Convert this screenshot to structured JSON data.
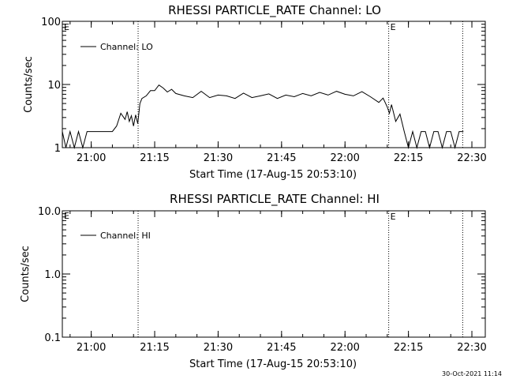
{
  "colors": {
    "background": "#ffffff",
    "foreground": "#000000"
  },
  "timestamp": "30-Oct-2021 11:14",
  "chart_data": [
    {
      "type": "line",
      "title": "RHESSI PARTICLE_RATE Channel: LO",
      "xlabel": "Start Time (17-Aug-15 20:53:10)",
      "ylabel": "Counts/sec",
      "yscale": "log",
      "ylim": [
        1,
        100
      ],
      "xlim": [
        "20:53:10",
        "22:33:10"
      ],
      "x_ticks": [
        "21:00",
        "21:15",
        "21:30",
        "21:45",
        "22:00",
        "22:15",
        "22:30"
      ],
      "y_ticks": [
        "1",
        "10",
        "100"
      ],
      "legend": {
        "position": "top-left",
        "entries": [
          "Channel: LO"
        ]
      },
      "markers": [
        {
          "time": "21:11:05",
          "label": ""
        },
        {
          "time": "22:10:20",
          "label": "E"
        },
        {
          "time": "22:27:50",
          "label": ""
        }
      ],
      "corner_label": "E",
      "series": [
        {
          "name": "Channel: LO",
          "x": [
            "20:53:10",
            "20:54:00",
            "20:55:00",
            "20:56:00",
            "20:57:00",
            "20:58:00",
            "20:59:00",
            "21:00:00",
            "21:01:00",
            "21:02:00",
            "21:03:00",
            "21:04:00",
            "21:05:00",
            "21:06:00",
            "21:07:00",
            "21:08:00",
            "21:08:30",
            "21:09:00",
            "21:09:30",
            "21:10:00",
            "21:10:30",
            "21:11:00",
            "21:11:30",
            "21:12:00",
            "21:13:00",
            "21:14:00",
            "21:15:00",
            "21:16:00",
            "21:17:00",
            "21:18:00",
            "21:19:00",
            "21:20:00",
            "21:22:00",
            "21:24:00",
            "21:26:00",
            "21:28:00",
            "21:30:00",
            "21:32:00",
            "21:34:00",
            "21:36:00",
            "21:38:00",
            "21:40:00",
            "21:42:00",
            "21:44:00",
            "21:46:00",
            "21:48:00",
            "21:50:00",
            "21:52:00",
            "21:54:00",
            "21:56:00",
            "21:58:00",
            "22:00:00",
            "22:02:00",
            "22:04:00",
            "22:06:00",
            "22:08:00",
            "22:09:00",
            "22:10:00",
            "22:10:30",
            "22:11:00",
            "22:12:00",
            "22:13:00",
            "22:14:00",
            "22:15:00",
            "22:16:00",
            "22:17:00",
            "22:18:00",
            "22:19:00",
            "22:20:00",
            "22:21:00",
            "22:22:00",
            "22:23:00",
            "22:24:00",
            "22:25:00",
            "22:26:00",
            "22:27:00",
            "22:28:00"
          ],
          "y": [
            1.8,
            1,
            1.8,
            1,
            1.8,
            1,
            1.8,
            1.8,
            1.8,
            1.8,
            1.8,
            1.8,
            1.8,
            2.2,
            3.5,
            2.8,
            3.7,
            2.6,
            3.2,
            2.2,
            3.3,
            2.4,
            5,
            6,
            6.6,
            8,
            8,
            9.8,
            8.8,
            7.6,
            8.4,
            7.2,
            6.6,
            6.2,
            7.8,
            6.2,
            6.8,
            6.6,
            6,
            7.3,
            6.2,
            6.6,
            7.1,
            6,
            6.8,
            6.4,
            7.2,
            6.6,
            7.5,
            6.8,
            7.8,
            7,
            6.6,
            7.7,
            6.4,
            5.2,
            6.1,
            4.4,
            3.5,
            4.8,
            2.6,
            3.4,
            1.8,
            1,
            1.8,
            1,
            1.8,
            1.8,
            1,
            1.8,
            1.8,
            1,
            1.8,
            1.8,
            1,
            1.8,
            1.8
          ]
        }
      ]
    },
    {
      "type": "line",
      "title": "RHESSI PARTICLE_RATE Channel: HI",
      "xlabel": "Start Time (17-Aug-15 20:53:10)",
      "ylabel": "Counts/sec",
      "yscale": "log",
      "ylim": [
        0.1,
        10
      ],
      "xlim": [
        "20:53:10",
        "22:33:10"
      ],
      "x_ticks": [
        "21:00",
        "21:15",
        "21:30",
        "21:45",
        "22:00",
        "22:15",
        "22:30"
      ],
      "y_ticks": [
        "0.1",
        "1.0",
        "10.0"
      ],
      "legend": {
        "position": "top-left",
        "entries": [
          "Channel: HI"
        ]
      },
      "markers": [
        {
          "time": "21:11:05",
          "label": ""
        },
        {
          "time": "22:10:20",
          "label": "E"
        },
        {
          "time": "22:27:50",
          "label": ""
        }
      ],
      "corner_label": "E",
      "series": [
        {
          "name": "Channel: HI",
          "x": [],
          "y": []
        }
      ]
    }
  ]
}
